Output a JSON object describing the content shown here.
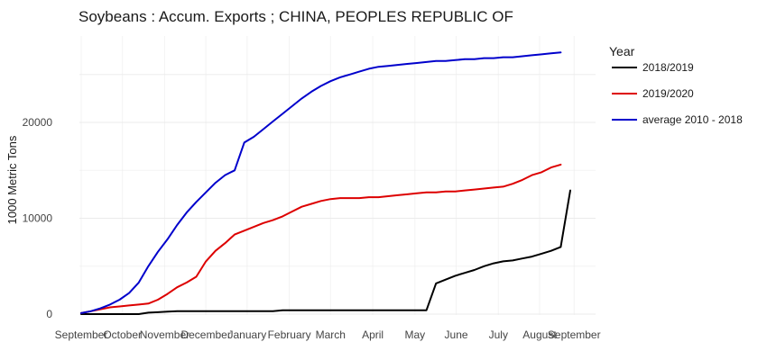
{
  "chart_data": {
    "type": "line",
    "title": "Soybeans :  Accum. Exports ;  CHINA, PEOPLES REPUBLIC OF",
    "xlabel": "",
    "ylabel": "1000 Metric Tons",
    "ylim": [
      0,
      28000
    ],
    "yticks": [
      0,
      10000,
      20000
    ],
    "xticks": [
      "September",
      "October",
      "November",
      "December",
      "January",
      "February",
      "March",
      "April",
      "May",
      "June",
      "July",
      "August",
      "September"
    ],
    "x_unit": "week of marketing year (Sep–Aug)",
    "legend": {
      "title": "Year",
      "position": "right"
    },
    "grid": true,
    "series": [
      {
        "name": "2018/2019",
        "color": "#000000",
        "x": [
          0,
          1,
          2,
          3,
          4,
          5,
          6,
          7,
          8,
          9,
          10,
          11,
          12,
          13,
          14,
          15,
          16,
          17,
          18,
          19,
          20,
          21,
          22,
          23,
          24,
          25,
          26,
          27,
          28,
          29,
          30,
          31,
          32,
          33,
          34,
          35,
          36,
          37,
          38,
          39,
          40,
          41,
          42,
          43,
          44,
          45,
          46,
          47,
          48,
          49,
          50,
          51
        ],
        "values": [
          0,
          0,
          0,
          0,
          0,
          0,
          0,
          150,
          200,
          250,
          300,
          300,
          300,
          300,
          300,
          300,
          300,
          300,
          300,
          300,
          300,
          400,
          400,
          400,
          400,
          400,
          400,
          400,
          400,
          400,
          400,
          400,
          400,
          400,
          400,
          400,
          400,
          3200,
          3600,
          4000,
          4300,
          4600,
          5000,
          5300,
          5500,
          5600,
          5800,
          6000,
          6300,
          6600,
          7000,
          12900
        ]
      },
      {
        "name": "2019/2020",
        "color": "#dd0000",
        "x": [
          0,
          1,
          2,
          3,
          4,
          5,
          6,
          7,
          8,
          9,
          10,
          11,
          12,
          13,
          14,
          15,
          16,
          17,
          18,
          19,
          20,
          21,
          22,
          23,
          24,
          25,
          26,
          27,
          28,
          29,
          30,
          31,
          32,
          33,
          34,
          35,
          36,
          37,
          38,
          39,
          40,
          41,
          42,
          43,
          44,
          45,
          46,
          47,
          48,
          49,
          50
        ],
        "values": [
          100,
          300,
          500,
          700,
          800,
          900,
          1000,
          1100,
          1500,
          2100,
          2800,
          3300,
          3900,
          5500,
          6600,
          7400,
          8300,
          8700,
          9100,
          9500,
          9800,
          10200,
          10700,
          11200,
          11500,
          11800,
          12000,
          12100,
          12100,
          12100,
          12200,
          12200,
          12300,
          12400,
          12500,
          12600,
          12700,
          12700,
          12800,
          12800,
          12900,
          13000,
          13100,
          13200,
          13300,
          13600,
          14000,
          14500,
          14800,
          15300,
          15600
        ]
      },
      {
        "name": "average 2010 - 2018",
        "color": "#0000cc",
        "x": [
          0,
          1,
          2,
          3,
          4,
          5,
          6,
          7,
          8,
          9,
          10,
          11,
          12,
          13,
          14,
          15,
          16,
          17,
          18,
          19,
          20,
          21,
          22,
          23,
          24,
          25,
          26,
          27,
          28,
          29,
          30,
          31,
          32,
          33,
          34,
          35,
          36,
          37,
          38,
          39,
          40,
          41,
          42,
          43,
          44,
          45,
          46,
          47,
          48,
          49,
          50
        ],
        "values": [
          100,
          300,
          600,
          1000,
          1500,
          2200,
          3300,
          5000,
          6500,
          7800,
          9300,
          10600,
          11700,
          12700,
          13700,
          14500,
          15000,
          17900,
          18500,
          19300,
          20100,
          20900,
          21700,
          22500,
          23200,
          23800,
          24300,
          24700,
          25000,
          25300,
          25600,
          25800,
          25900,
          26000,
          26100,
          26200,
          26300,
          26400,
          26400,
          26500,
          26600,
          26600,
          26700,
          26700,
          26800,
          26800,
          26900,
          27000,
          27100,
          27200,
          27300
        ]
      }
    ]
  }
}
